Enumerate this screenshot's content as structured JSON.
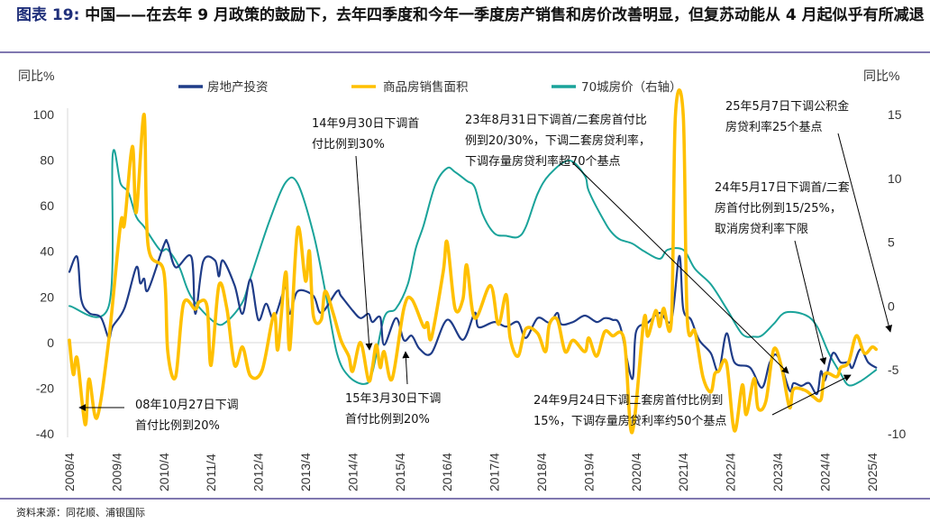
{
  "title": {
    "lead": "图表 19:",
    "text": "中国——在去年 9 月政策的鼓励下，去年四季度和今年一季度房产销售和房价改善明显，但复苏动能从 4 月起似乎有所减退"
  },
  "source": "资料来源：同花顺、浦银国际",
  "colors": {
    "investment": "#1F3C88",
    "sales": "#FFC000",
    "price70": "#1AA39A",
    "rule": "#8078B0",
    "grid": "#D9D9D9"
  },
  "chart_data": {
    "type": "line",
    "ylabel_left": "同比%",
    "ylabel_right": "同比%",
    "ylim_left": [
      -40,
      100
    ],
    "ylim_right": [
      -10,
      15
    ],
    "yticks_left": [
      "100",
      "80",
      "60",
      "40",
      "20",
      "0",
      "-20",
      "-40"
    ],
    "yticks_right": [
      "15",
      "10",
      "5",
      "0",
      "-5",
      "-10"
    ],
    "xticks": [
      "2008/4",
      "2009/4",
      "2010/4",
      "2011/4",
      "2012/4",
      "2013/4",
      "2014/4",
      "2015/4",
      "2016/4",
      "2017/4",
      "2018/4",
      "2019/4",
      "2020/4",
      "2021/4",
      "2022/4",
      "2023/4",
      "2024/4",
      "2025/4"
    ],
    "xlim": [
      "2008-04",
      "2025-05"
    ],
    "grid": "zero-line only",
    "legend_placement": "top",
    "series": [
      {
        "name": "房地产投资",
        "axis": "left",
        "color": "#1F3C88",
        "points": [
          [
            "2008-04",
            31
          ],
          [
            "2008-06",
            37.5
          ],
          [
            "2008-07",
            19
          ],
          [
            "2008-09",
            13
          ],
          [
            "2008-12",
            11
          ],
          [
            "2009-02",
            2
          ],
          [
            "2009-03",
            7
          ],
          [
            "2009-06",
            15
          ],
          [
            "2009-09",
            33
          ],
          [
            "2009-10",
            26
          ],
          [
            "2009-11",
            28
          ],
          [
            "2009-12",
            23
          ],
          [
            "2010-04",
            42.7
          ],
          [
            "2010-05",
            43.5
          ],
          [
            "2010-07",
            33
          ],
          [
            "2010-11",
            37.5
          ],
          [
            "2010-12",
            12.6
          ],
          [
            "2011-02",
            35.6
          ],
          [
            "2011-05",
            36
          ],
          [
            "2011-06",
            29
          ],
          [
            "2011-07",
            36
          ],
          [
            "2011-10",
            25
          ],
          [
            "2011-12",
            12.6
          ],
          [
            "2012-02",
            27.7
          ],
          [
            "2012-04",
            10
          ],
          [
            "2012-06",
            17
          ],
          [
            "2012-08",
            10.7
          ],
          [
            "2012-11",
            24.5
          ],
          [
            "2012-12",
            12.6
          ],
          [
            "2013-02",
            22.5
          ],
          [
            "2013-06",
            20.5
          ],
          [
            "2013-08",
            13
          ],
          [
            "2013-12",
            22.5
          ],
          [
            "2014-01",
            20.5
          ],
          [
            "2014-04",
            14
          ],
          [
            "2014-06",
            10.7
          ],
          [
            "2014-08",
            12.6
          ],
          [
            "2014-09",
            9
          ],
          [
            "2014-11",
            11
          ],
          [
            "2014-12",
            -1
          ],
          [
            "2015-03",
            10.7
          ],
          [
            "2015-05",
            1
          ],
          [
            "2015-07",
            3
          ],
          [
            "2015-09",
            -2.8
          ],
          [
            "2015-12",
            -4.7
          ],
          [
            "2016-04",
            10
          ],
          [
            "2016-08",
            1.2
          ],
          [
            "2016-11",
            13
          ],
          [
            "2016-12",
            6.7
          ],
          [
            "2017-04",
            9
          ],
          [
            "2017-07",
            7
          ],
          [
            "2017-10",
            9
          ],
          [
            "2017-12",
            2
          ],
          [
            "2018-03",
            10.7
          ],
          [
            "2018-06",
            8.7
          ],
          [
            "2018-08",
            13
          ],
          [
            "2018-09",
            8
          ],
          [
            "2018-12",
            9
          ],
          [
            "2019-03",
            11.8
          ],
          [
            "2019-06",
            9
          ],
          [
            "2019-08",
            10.7
          ],
          [
            "2019-10",
            10
          ],
          [
            "2019-12",
            7
          ],
          [
            "2020-03",
            -16
          ],
          [
            "2020-04",
            4.7
          ],
          [
            "2020-07",
            8.7
          ],
          [
            "2020-10",
            13
          ],
          [
            "2021-01",
            10
          ],
          [
            "2021-03",
            38
          ],
          [
            "2021-04",
            14.6
          ],
          [
            "2021-06",
            10
          ],
          [
            "2021-08",
            1.2
          ],
          [
            "2021-11",
            -4.7
          ],
          [
            "2022-01",
            -12.6
          ],
          [
            "2022-03",
            4
          ],
          [
            "2022-05",
            -8.7
          ],
          [
            "2022-09",
            -11
          ],
          [
            "2022-12",
            -19.8
          ],
          [
            "2023-02",
            -8.7
          ],
          [
            "2023-04",
            -6
          ],
          [
            "2023-07",
            -21
          ],
          [
            "2023-08",
            -17.8
          ],
          [
            "2023-10",
            -19
          ],
          [
            "2023-12",
            -17.8
          ],
          [
            "2024-02",
            -22.5
          ],
          [
            "2024-03",
            -12.6
          ],
          [
            "2024-04",
            -16.6
          ],
          [
            "2024-06",
            -4.7
          ],
          [
            "2024-08",
            -8.7
          ],
          [
            "2024-10",
            -8.7
          ],
          [
            "2024-11",
            -11
          ],
          [
            "2025-01",
            -3
          ],
          [
            "2025-03",
            -8.7
          ],
          [
            "2025-05",
            -11
          ]
        ]
      },
      {
        "name": "商品房销售面积",
        "axis": "left",
        "color": "#FFC000",
        "points": [
          [
            "2008-04",
            1
          ],
          [
            "2008-05",
            -14
          ],
          [
            "2008-06",
            -7
          ],
          [
            "2008-08",
            -36
          ],
          [
            "2008-09",
            -16
          ],
          [
            "2008-11",
            -33
          ],
          [
            "2009-02",
            1
          ],
          [
            "2009-05",
            52
          ],
          [
            "2009-06",
            52
          ],
          [
            "2009-08",
            86
          ],
          [
            "2009-09",
            57
          ],
          [
            "2009-11",
            100
          ],
          [
            "2009-12",
            42.7
          ],
          [
            "2010-04",
            31
          ],
          [
            "2010-05",
            -4
          ],
          [
            "2010-07",
            -15
          ],
          [
            "2010-09",
            17
          ],
          [
            "2010-12",
            14.6
          ],
          [
            "2011-01",
            17.8
          ],
          [
            "2011-03",
            15.8
          ],
          [
            "2011-04",
            -10
          ],
          [
            "2011-06",
            25
          ],
          [
            "2011-08",
            15
          ],
          [
            "2011-10",
            -10
          ],
          [
            "2011-12",
            -2
          ],
          [
            "2012-02",
            -14.6
          ],
          [
            "2012-05",
            -12
          ],
          [
            "2012-08",
            12.6
          ],
          [
            "2012-09",
            -3
          ],
          [
            "2012-11",
            31
          ],
          [
            "2012-12",
            -3
          ],
          [
            "2013-02",
            50
          ],
          [
            "2013-04",
            27
          ],
          [
            "2013-05",
            40
          ],
          [
            "2013-06",
            11.8
          ],
          [
            "2013-08",
            10
          ],
          [
            "2013-09",
            22.5
          ],
          [
            "2013-11",
            13
          ],
          [
            "2014-01",
            1
          ],
          [
            "2014-03",
            -6
          ],
          [
            "2014-04",
            -12.6
          ],
          [
            "2014-06",
            0
          ],
          [
            "2014-08",
            -16.6
          ],
          [
            "2014-09",
            -11
          ],
          [
            "2014-10",
            -1
          ],
          [
            "2014-11",
            -11
          ],
          [
            "2014-12",
            -4
          ],
          [
            "2015-02",
            -16
          ],
          [
            "2015-05",
            15
          ],
          [
            "2015-07",
            19
          ],
          [
            "2015-10",
            7
          ],
          [
            "2015-11",
            8.7
          ],
          [
            "2015-12",
            2
          ],
          [
            "2016-03",
            31
          ],
          [
            "2016-04",
            44
          ],
          [
            "2016-06",
            15
          ],
          [
            "2016-08",
            19
          ],
          [
            "2016-09",
            34
          ],
          [
            "2016-11",
            10.7
          ],
          [
            "2017-03",
            25
          ],
          [
            "2017-05",
            8
          ],
          [
            "2017-07",
            21
          ],
          [
            "2017-08",
            2
          ],
          [
            "2017-10",
            -6
          ],
          [
            "2017-12",
            6
          ],
          [
            "2018-03",
            4
          ],
          [
            "2018-05",
            -4
          ],
          [
            "2018-06",
            8
          ],
          [
            "2018-08",
            10
          ],
          [
            "2018-10",
            -4
          ],
          [
            "2018-12",
            1
          ],
          [
            "2019-03",
            -4
          ],
          [
            "2019-04",
            2
          ],
          [
            "2019-06",
            -6
          ],
          [
            "2019-08",
            4.7
          ],
          [
            "2019-10",
            3
          ],
          [
            "2020-01",
            1
          ],
          [
            "2020-03",
            -39.5
          ],
          [
            "2020-06",
            10
          ],
          [
            "2020-07",
            2.8
          ],
          [
            "2020-09",
            14
          ],
          [
            "2020-10",
            7
          ],
          [
            "2020-11",
            15
          ],
          [
            "2021-01",
            10
          ],
          [
            "2021-02",
            99.6
          ],
          [
            "2021-04",
            99.6
          ],
          [
            "2021-05",
            10.7
          ],
          [
            "2021-07",
            4.7
          ],
          [
            "2021-09",
            -15
          ],
          [
            "2021-11",
            -21.7
          ],
          [
            "2021-12",
            -13.8
          ],
          [
            "2022-01",
            -12.6
          ],
          [
            "2022-03",
            -9
          ],
          [
            "2022-05",
            -38.7
          ],
          [
            "2022-07",
            -18.6
          ],
          [
            "2022-08",
            -31.6
          ],
          [
            "2022-10",
            -15.8
          ],
          [
            "2022-11",
            -28.8
          ],
          [
            "2023-01",
            -25.7
          ],
          [
            "2023-03",
            -3
          ],
          [
            "2023-05",
            -11
          ],
          [
            "2023-07",
            -28.5
          ],
          [
            "2023-08",
            -20.5
          ],
          [
            "2023-11",
            -21
          ],
          [
            "2024-01",
            -23.7
          ],
          [
            "2024-03",
            -25
          ],
          [
            "2024-04",
            -13.8
          ],
          [
            "2024-07",
            -15
          ],
          [
            "2024-08",
            -11
          ],
          [
            "2024-10",
            -8.7
          ],
          [
            "2024-12",
            3
          ],
          [
            "2025-02",
            -4.7
          ],
          [
            "2025-04",
            -2
          ],
          [
            "2025-05",
            -3
          ]
        ]
      },
      {
        "name": "70城房价（右轴）",
        "axis": "right",
        "color": "#1AA39A",
        "points": [
          [
            "2008-04",
            0
          ],
          [
            "2009-02",
            0
          ],
          [
            "2009-03",
            11.8
          ],
          [
            "2009-05",
            9.6
          ],
          [
            "2009-07",
            8.9
          ],
          [
            "2009-09",
            7
          ],
          [
            "2009-11",
            6.2
          ],
          [
            "2010-03",
            4.4
          ],
          [
            "2010-05",
            4.4
          ],
          [
            "2010-08",
            3
          ],
          [
            "2010-11",
            0.7
          ],
          [
            "2011-05",
            -1.3
          ],
          [
            "2011-08",
            -1.2
          ],
          [
            "2011-12",
            0.3
          ],
          [
            "2012-02",
            2.2
          ],
          [
            "2012-07",
            6.8
          ],
          [
            "2012-11",
            9.7
          ],
          [
            "2013-02",
            9.6
          ],
          [
            "2013-06",
            5.7
          ],
          [
            "2013-09",
            1.2
          ],
          [
            "2013-12",
            -3.7
          ],
          [
            "2014-03",
            -5.5
          ],
          [
            "2014-07",
            -6.1
          ],
          [
            "2014-09",
            -5.2
          ],
          [
            "2014-12",
            -0.9
          ],
          [
            "2015-03",
            -0.2
          ],
          [
            "2015-06",
            1.7
          ],
          [
            "2015-08",
            4.5
          ],
          [
            "2015-10",
            6.3
          ],
          [
            "2016-01",
            9.5
          ],
          [
            "2016-04",
            10.8
          ],
          [
            "2016-06",
            10.5
          ],
          [
            "2016-09",
            9.8
          ],
          [
            "2016-11",
            9.3
          ],
          [
            "2017-01",
            7.2
          ],
          [
            "2017-04",
            5.7
          ],
          [
            "2017-07",
            5.5
          ],
          [
            "2017-10",
            5.4
          ],
          [
            "2017-12",
            6.2
          ],
          [
            "2018-03",
            8.8
          ],
          [
            "2018-06",
            10.3
          ],
          [
            "2018-11",
            11.4
          ],
          [
            "2019-03",
            10.2
          ],
          [
            "2019-04",
            9
          ],
          [
            "2019-08",
            6.6
          ],
          [
            "2019-10",
            5.7
          ],
          [
            "2019-12",
            5.2
          ],
          [
            "2020-03",
            4.9
          ],
          [
            "2020-06",
            4.3
          ],
          [
            "2020-10",
            3.7
          ],
          [
            "2020-12",
            4.4
          ],
          [
            "2021-04",
            4.4
          ],
          [
            "2021-07",
            2.9
          ],
          [
            "2021-11",
            1.7
          ],
          [
            "2022-03",
            -0.2
          ],
          [
            "2022-07",
            -2.2
          ],
          [
            "2022-10",
            -2.4
          ],
          [
            "2022-12",
            -2.3
          ],
          [
            "2023-03",
            -1.4
          ],
          [
            "2023-06",
            -0.5
          ],
          [
            "2023-11",
            -0.7
          ],
          [
            "2024-02",
            -1.6
          ],
          [
            "2024-05",
            -3.7
          ],
          [
            "2024-08",
            -5.3
          ],
          [
            "2024-10",
            -6.2
          ],
          [
            "2025-01",
            -5.9
          ],
          [
            "2025-05",
            -5.0
          ]
        ]
      }
    ],
    "annotations": [
      {
        "lines": [
          "14年9月30日下调首",
          "付比例到30%"
        ]
      },
      {
        "lines": [
          "23年8月31日下调首/二套房首付比",
          "例到20/30%，下调二套房贷利率，",
          "下调存量房贷利率超70个基点"
        ]
      },
      {
        "lines": [
          "25年5月7日下调公积金",
          "房贷利率25个基点"
        ]
      },
      {
        "lines": [
          "24年5月17日下调首/二套",
          "房首付比例到15/25%，",
          "取消房贷利率下限"
        ]
      },
      {
        "lines": [
          "08年10月27日下调",
          "首付比例到20%"
        ]
      },
      {
        "lines": [
          "15年3月30日下调",
          "首付比例到20%"
        ]
      },
      {
        "lines": [
          "24年9月24日下调二套房首付比例到",
          "15%，下调存量房贷利率约50个基点"
        ]
      }
    ]
  }
}
